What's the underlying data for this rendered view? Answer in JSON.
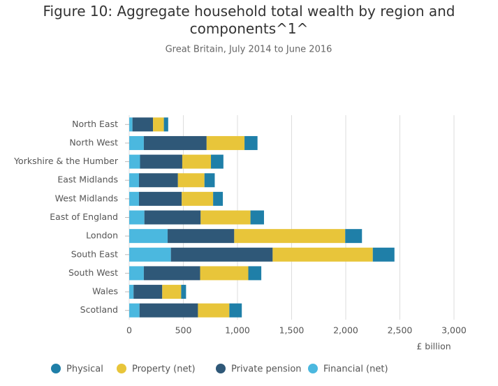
{
  "chart_data": {
    "type": "stacked-barh",
    "title": "Figure 10: Aggregate household total wealth by region and components^1^",
    "subtitle": "Great Britain, July 2014 to June 2016",
    "xlabel": "£ billion",
    "categories": [
      "North East",
      "North West",
      "Yorkshire & the Humber",
      "East Midlands",
      "West Midlands",
      "East of England",
      "London",
      "South East",
      "South West",
      "Wales",
      "Scotland"
    ],
    "series": [
      {
        "name": "Physical",
        "color": "#1f7fa8",
        "values": [
          40,
          120,
          115,
          95,
          90,
          125,
          155,
          200,
          120,
          45,
          115
        ]
      },
      {
        "name": "Property (net)",
        "color": "#e8c53a",
        "values": [
          100,
          350,
          265,
          245,
          290,
          460,
          1025,
          925,
          445,
          175,
          290
        ]
      },
      {
        "name": "Private pension",
        "color": "#2f5878",
        "values": [
          190,
          580,
          390,
          360,
          395,
          520,
          615,
          940,
          520,
          265,
          540
        ]
      },
      {
        "name": "Financial (net)",
        "color": "#4bb8df",
        "values": [
          30,
          135,
          100,
          90,
          90,
          140,
          355,
          385,
          135,
          40,
          95
        ]
      }
    ],
    "xlim": [
      0,
      3000
    ],
    "xticks": [
      0,
      500,
      {
        "value": 1000,
        "label": "1,000"
      },
      {
        "value": 1500,
        "label": "1,500"
      },
      {
        "value": 2000,
        "label": "2,000"
      },
      {
        "value": 2500,
        "label": "2,500"
      },
      {
        "value": 3000,
        "label": "3,000"
      }
    ],
    "grid": true
  }
}
